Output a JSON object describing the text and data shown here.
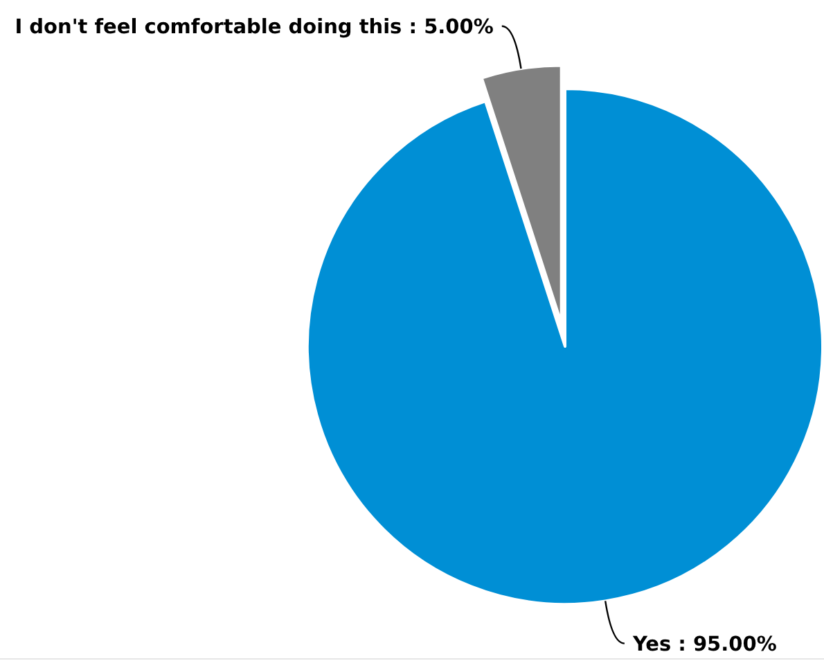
{
  "chart_data": {
    "type": "pie",
    "categories": [
      "Yes",
      "I don't feel comfortable doing this"
    ],
    "values": [
      95,
      5
    ],
    "colors": [
      "#008fd5",
      "#808080"
    ],
    "value_labels": [
      "95.00%",
      "5.00%"
    ]
  }
}
